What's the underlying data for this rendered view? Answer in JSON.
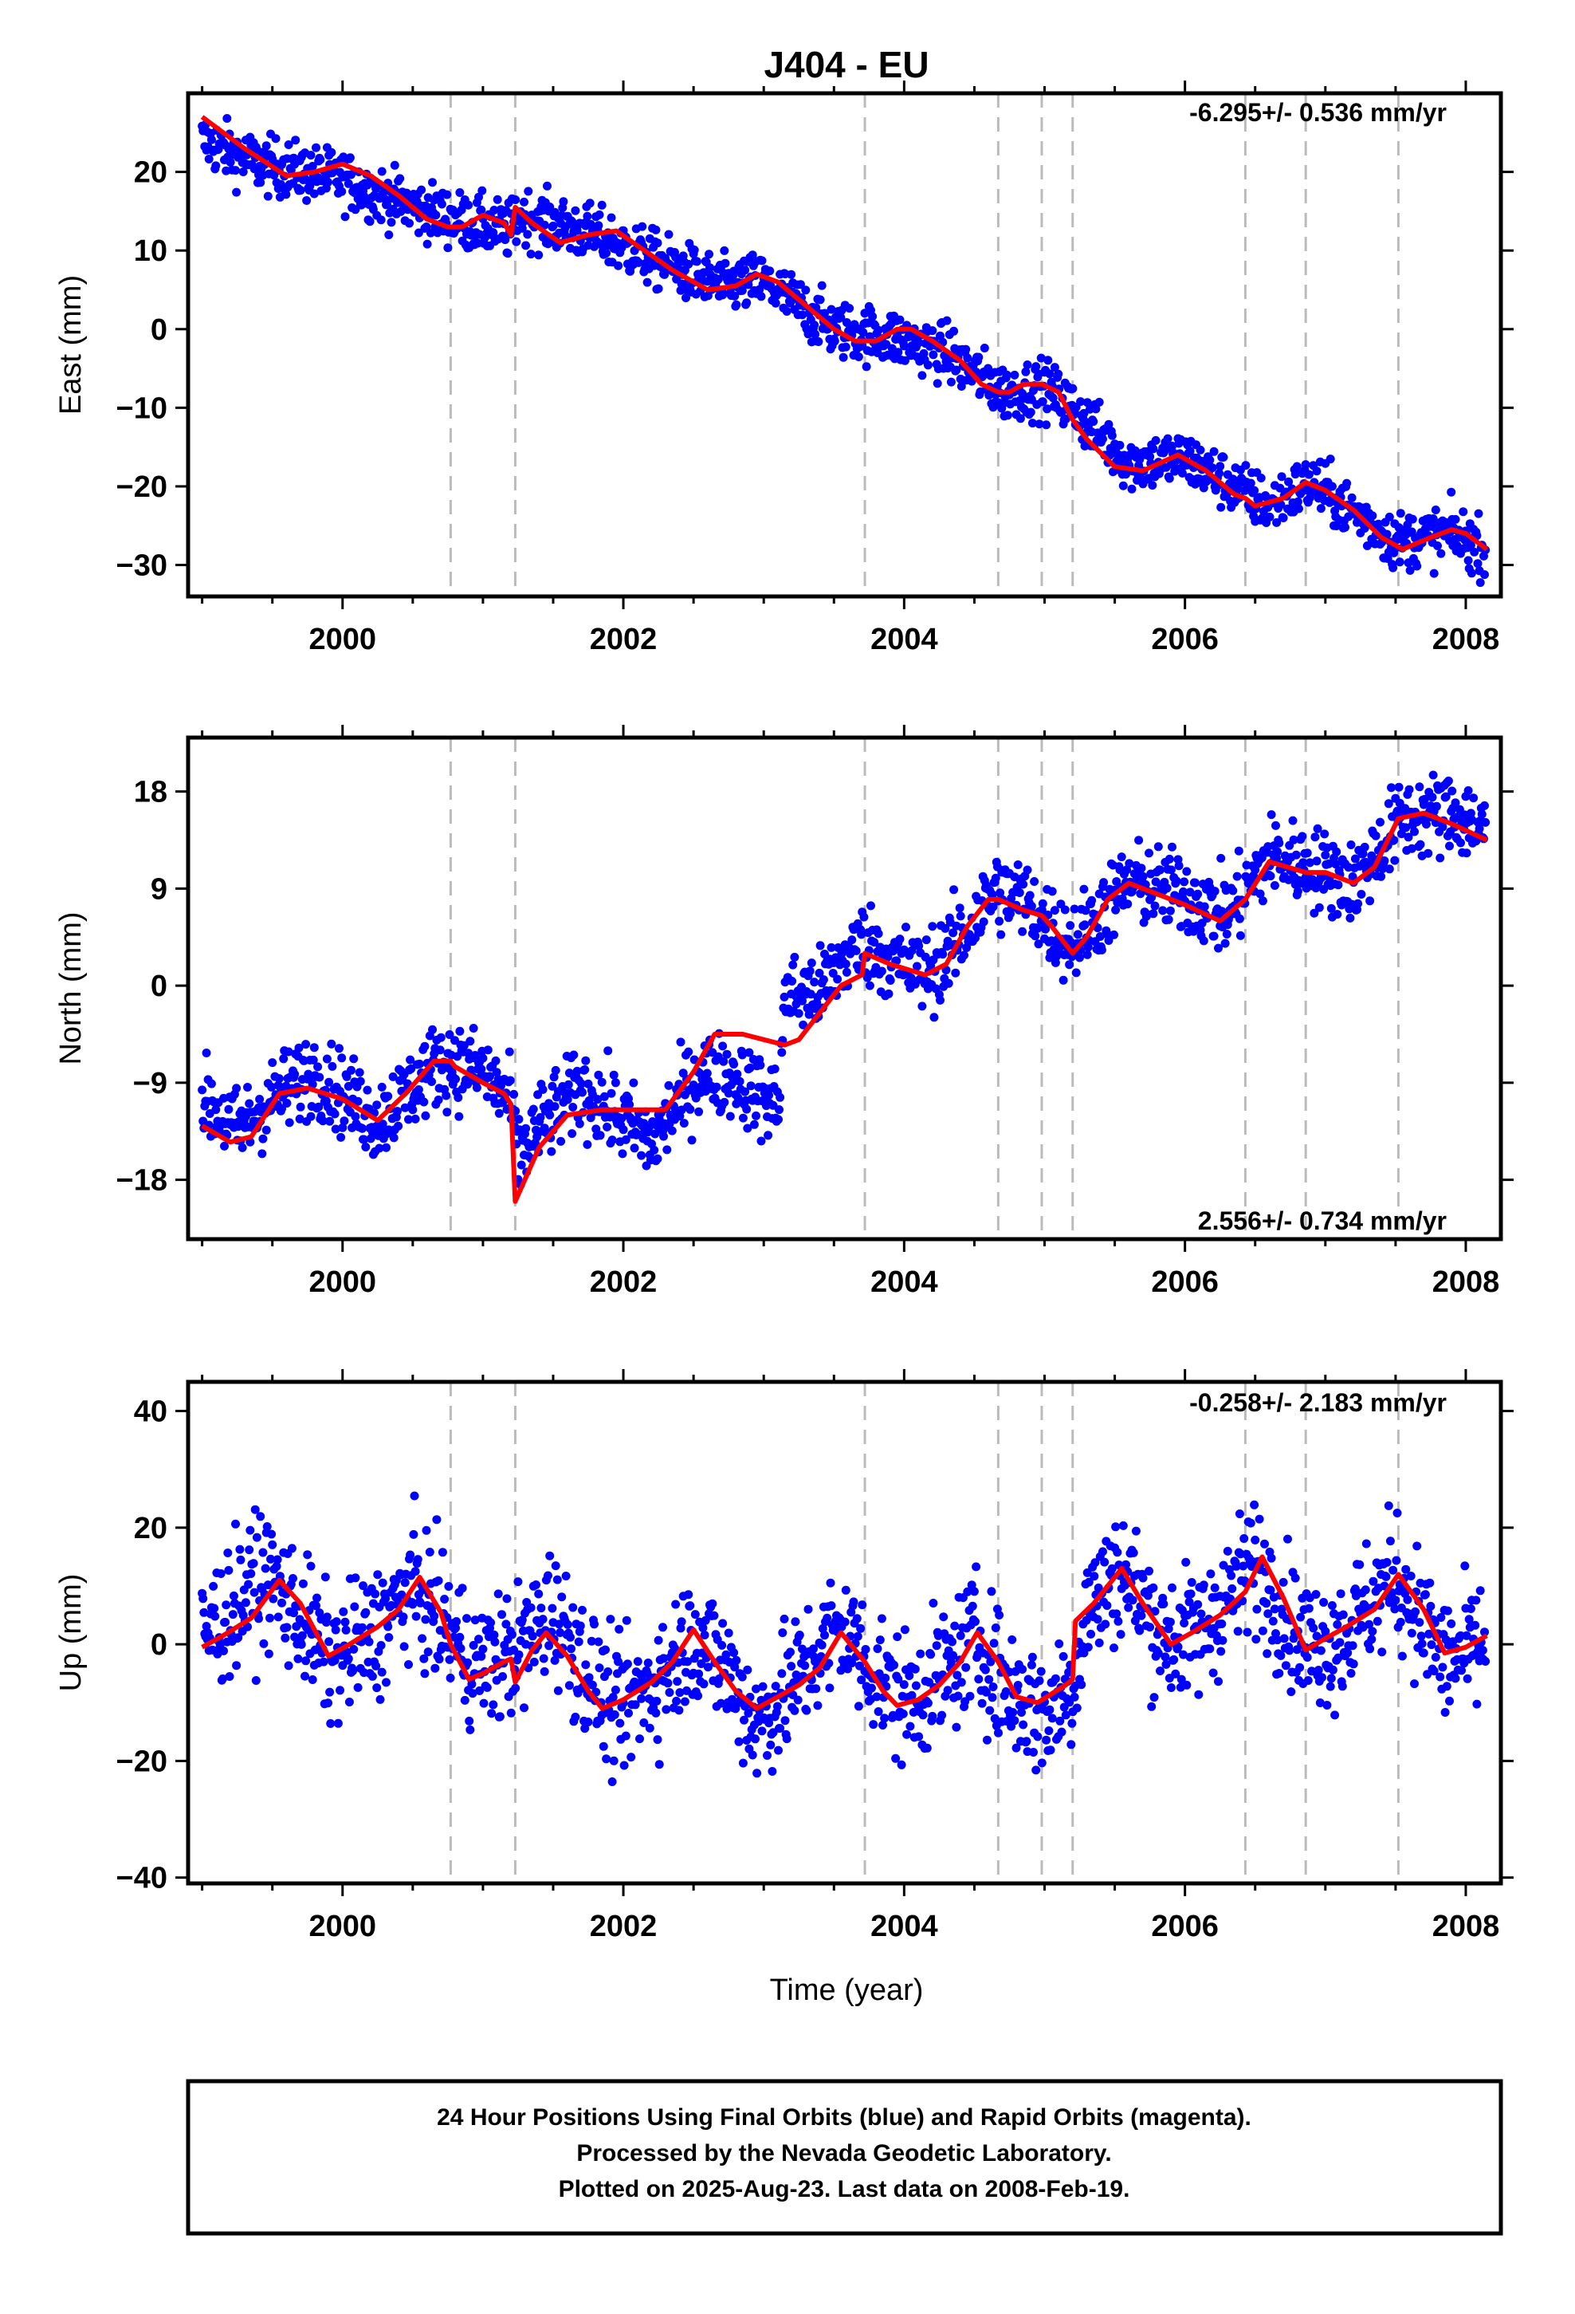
{
  "title": "J404 - EU",
  "xlabel": "Time (year)",
  "footer": {
    "line1": "24 Hour Positions Using Final Orbits (blue) and Rapid Orbits (magenta).",
    "line2": "Processed by the Nevada Geodetic Laboratory.",
    "line3": "Plotted on 2025-Aug-23. Last data on 2008-Feb-19."
  },
  "colors": {
    "points": "#0000ff",
    "model": "#ff0000",
    "events": "#bbbbbb",
    "frame": "#000000"
  },
  "chart_data": [
    {
      "type": "scatter",
      "ylabel": "East (mm)",
      "rate_label": "-6.295+/- 0.536 mm/yr",
      "xlim": [
        1998.9,
        2008.25
      ],
      "ylim": [
        -34,
        30
      ],
      "xticks": [
        2000,
        2002,
        2004,
        2006,
        2008
      ],
      "yticks": [
        -30,
        -20,
        -10,
        0,
        10,
        20
      ],
      "events": [
        2000.77,
        2001.23,
        2003.72,
        2004.67,
        2004.98,
        2005.2,
        2006.43,
        2006.86,
        2007.52
      ],
      "model_line": [
        [
          1999.0,
          27
        ],
        [
          1999.3,
          23
        ],
        [
          1999.6,
          19.5
        ],
        [
          1999.8,
          20
        ],
        [
          2000.0,
          21
        ],
        [
          2000.2,
          19.5
        ],
        [
          2000.4,
          17
        ],
        [
          2000.6,
          14
        ],
        [
          2000.75,
          13
        ],
        [
          2000.85,
          13
        ],
        [
          2001.0,
          14.5
        ],
        [
          2001.15,
          13.5
        ],
        [
          2001.2,
          12
        ],
        [
          2001.23,
          15.5
        ],
        [
          2001.35,
          13.5
        ],
        [
          2001.55,
          11
        ],
        [
          2001.75,
          12
        ],
        [
          2001.95,
          12.5
        ],
        [
          2002.15,
          10
        ],
        [
          2002.35,
          7.5
        ],
        [
          2002.6,
          5
        ],
        [
          2002.8,
          5.5
        ],
        [
          2002.95,
          7
        ],
        [
          2003.1,
          6
        ],
        [
          2003.3,
          3
        ],
        [
          2003.5,
          0
        ],
        [
          2003.65,
          -1.5
        ],
        [
          2003.8,
          -1.5
        ],
        [
          2003.95,
          0
        ],
        [
          2004.05,
          0
        ],
        [
          2004.2,
          -1.5
        ],
        [
          2004.4,
          -4
        ],
        [
          2004.55,
          -7
        ],
        [
          2004.67,
          -8
        ],
        [
          2004.75,
          -8
        ],
        [
          2004.85,
          -7
        ],
        [
          2004.98,
          -7
        ],
        [
          2005.1,
          -8
        ],
        [
          2005.2,
          -11.5
        ],
        [
          2005.3,
          -14
        ],
        [
          2005.5,
          -17.5
        ],
        [
          2005.7,
          -18
        ],
        [
          2005.95,
          -16
        ],
        [
          2006.15,
          -18
        ],
        [
          2006.35,
          -21
        ],
        [
          2006.43,
          -21.5
        ],
        [
          2006.5,
          -22.5
        ],
        [
          2006.7,
          -21.5
        ],
        [
          2006.86,
          -19.5
        ],
        [
          2007.0,
          -20.5
        ],
        [
          2007.2,
          -23
        ],
        [
          2007.4,
          -26.5
        ],
        [
          2007.55,
          -28
        ],
        [
          2007.75,
          -26.5
        ],
        [
          2007.9,
          -25.5
        ],
        [
          2008.0,
          -26
        ],
        [
          2008.15,
          -28
        ]
      ],
      "point_trend": [
        [
          1999.0,
          24
        ],
        [
          1999.4,
          21
        ],
        [
          2000.0,
          19
        ],
        [
          2000.5,
          15.5
        ],
        [
          2000.9,
          13.5
        ],
        [
          2001.2,
          12.5
        ],
        [
          2001.25,
          14.5
        ],
        [
          2001.8,
          12
        ],
        [
          2002.2,
          9
        ],
        [
          2002.7,
          5.5
        ],
        [
          2003.0,
          6
        ],
        [
          2003.5,
          0
        ],
        [
          2003.9,
          -1
        ],
        [
          2004.3,
          -3
        ],
        [
          2004.7,
          -8
        ],
        [
          2005.0,
          -7.5
        ],
        [
          2005.2,
          -10
        ],
        [
          2005.6,
          -17
        ],
        [
          2006.0,
          -16.5
        ],
        [
          2006.4,
          -20.5
        ],
        [
          2006.6,
          -22.5
        ],
        [
          2006.9,
          -19.5
        ],
        [
          2007.5,
          -27
        ],
        [
          2007.9,
          -26
        ],
        [
          2008.15,
          -28
        ]
      ],
      "scatter_sigma": 1.8,
      "data_range": [
        1999.0,
        2008.14
      ]
    },
    {
      "type": "scatter",
      "ylabel": "North (mm)",
      "rate_label": "2.556+/- 0.734 mm/yr",
      "xlim": [
        1998.9,
        2008.25
      ],
      "ylim": [
        -23.5,
        23
      ],
      "xticks": [
        2000,
        2002,
        2004,
        2006,
        2008
      ],
      "yticks": [
        -18,
        -9,
        0,
        9,
        18
      ],
      "events": [
        2000.77,
        2001.23,
        2003.72,
        2004.67,
        2004.98,
        2005.2,
        2006.43,
        2006.86,
        2007.52
      ],
      "model_line": [
        [
          1999.0,
          -13
        ],
        [
          1999.2,
          -14.5
        ],
        [
          1999.35,
          -14
        ],
        [
          1999.55,
          -10
        ],
        [
          1999.75,
          -9.5
        ],
        [
          2000.0,
          -10.5
        ],
        [
          2000.25,
          -12.5
        ],
        [
          2000.45,
          -10
        ],
        [
          2000.65,
          -7
        ],
        [
          2000.77,
          -7
        ],
        [
          2000.8,
          -7.5
        ],
        [
          2001.0,
          -9
        ],
        [
          2001.15,
          -10
        ],
        [
          2001.2,
          -11
        ],
        [
          2001.23,
          -20
        ],
        [
          2001.4,
          -15
        ],
        [
          2001.6,
          -12
        ],
        [
          2001.85,
          -11.5
        ],
        [
          2002.1,
          -11.5
        ],
        [
          2002.3,
          -11.5
        ],
        [
          2002.5,
          -8
        ],
        [
          2002.65,
          -4.5
        ],
        [
          2002.85,
          -4.5
        ],
        [
          2003.0,
          -5
        ],
        [
          2003.15,
          -5.5
        ],
        [
          2003.25,
          -5
        ],
        [
          2003.4,
          -2.5
        ],
        [
          2003.55,
          0
        ],
        [
          2003.7,
          1
        ],
        [
          2003.72,
          3
        ],
        [
          2003.9,
          2
        ],
        [
          2004.15,
          1
        ],
        [
          2004.3,
          2
        ],
        [
          2004.45,
          5.5
        ],
        [
          2004.6,
          8
        ],
        [
          2004.67,
          8
        ],
        [
          2004.85,
          7
        ],
        [
          2004.98,
          6.5
        ],
        [
          2005.05,
          5.5
        ],
        [
          2005.2,
          3
        ],
        [
          2005.3,
          4.5
        ],
        [
          2005.45,
          8
        ],
        [
          2005.6,
          9.5
        ],
        [
          2005.8,
          8.5
        ],
        [
          2006.0,
          7.5
        ],
        [
          2006.25,
          6
        ],
        [
          2006.43,
          8
        ],
        [
          2006.6,
          11.5
        ],
        [
          2006.86,
          10.5
        ],
        [
          2007.0,
          10.5
        ],
        [
          2007.2,
          9.5
        ],
        [
          2007.35,
          11
        ],
        [
          2007.52,
          15.5
        ],
        [
          2007.7,
          16
        ],
        [
          2007.9,
          15
        ],
        [
          2008.15,
          13.5
        ]
      ],
      "point_trend": [
        [
          1999.0,
          -10.5
        ],
        [
          1999.25,
          -13.5
        ],
        [
          1999.5,
          -10.5
        ],
        [
          1999.8,
          -8
        ],
        [
          2000.0,
          -10
        ],
        [
          2000.25,
          -12.5
        ],
        [
          2000.45,
          -10
        ],
        [
          2000.7,
          -7
        ],
        [
          2001.0,
          -8
        ],
        [
          2001.2,
          -11
        ],
        [
          2001.25,
          -16
        ],
        [
          2001.4,
          -13
        ],
        [
          2001.7,
          -9.5
        ],
        [
          2001.95,
          -12
        ],
        [
          2002.2,
          -14.5
        ],
        [
          2002.55,
          -8
        ],
        [
          2002.8,
          -8.5
        ],
        [
          2003.0,
          -10.5
        ],
        [
          2003.1,
          -11
        ],
        [
          2003.15,
          -1
        ],
        [
          2003.4,
          -0.5
        ],
        [
          2003.6,
          3
        ],
        [
          2003.72,
          4
        ],
        [
          2003.9,
          2.5
        ],
        [
          2004.15,
          1
        ],
        [
          2004.45,
          5
        ],
        [
          2004.65,
          9
        ],
        [
          2004.9,
          7.5
        ],
        [
          2005.0,
          6
        ],
        [
          2005.2,
          4
        ],
        [
          2005.6,
          9.5
        ],
        [
          2006.0,
          8.5
        ],
        [
          2006.3,
          6.5
        ],
        [
          2006.6,
          12
        ],
        [
          2006.9,
          11
        ],
        [
          2007.2,
          9.5
        ],
        [
          2007.55,
          15.5
        ],
        [
          2007.9,
          16
        ],
        [
          2008.15,
          14.5
        ]
      ],
      "scatter_sigma": 1.9,
      "data_range": [
        1999.0,
        2008.14
      ]
    },
    {
      "type": "scatter",
      "ylabel": "Up (mm)",
      "rate_label": "-0.258+/- 2.183 mm/yr",
      "xlim": [
        1998.9,
        2008.25
      ],
      "ylim": [
        -41,
        45
      ],
      "xticks": [
        2000,
        2002,
        2004,
        2006,
        2008
      ],
      "yticks": [
        -40,
        -20,
        0,
        20,
        40
      ],
      "events": [
        2000.77,
        2001.23,
        2003.72,
        2004.67,
        2004.98,
        2005.2,
        2006.43,
        2006.86,
        2007.52
      ],
      "model_line": [
        [
          1999.0,
          -0.5
        ],
        [
          1999.15,
          1.5
        ],
        [
          1999.35,
          4.5
        ],
        [
          1999.55,
          11
        ],
        [
          1999.7,
          7
        ],
        [
          1999.9,
          -2
        ],
        [
          2000.05,
          0
        ],
        [
          2000.25,
          3
        ],
        [
          2000.4,
          6
        ],
        [
          2000.55,
          11.5
        ],
        [
          2000.7,
          5.5
        ],
        [
          2000.77,
          0
        ],
        [
          2000.9,
          -6
        ],
        [
          2001.0,
          -5
        ],
        [
          2001.15,
          -3
        ],
        [
          2001.2,
          -2.5
        ],
        [
          2001.23,
          -6.5
        ],
        [
          2001.35,
          -1
        ],
        [
          2001.45,
          2
        ],
        [
          2001.6,
          -2
        ],
        [
          2001.75,
          -8
        ],
        [
          2001.85,
          -11
        ],
        [
          2002.0,
          -9.5
        ],
        [
          2002.2,
          -6.5
        ],
        [
          2002.35,
          -3
        ],
        [
          2002.5,
          2.5
        ],
        [
          2002.65,
          -3
        ],
        [
          2002.8,
          -8
        ],
        [
          2002.95,
          -11
        ],
        [
          2003.1,
          -9
        ],
        [
          2003.25,
          -7
        ],
        [
          2003.4,
          -4
        ],
        [
          2003.55,
          2
        ],
        [
          2003.72,
          -3
        ],
        [
          2003.85,
          -8
        ],
        [
          2003.95,
          -10.5
        ],
        [
          2004.1,
          -9.5
        ],
        [
          2004.25,
          -7
        ],
        [
          2004.4,
          -3
        ],
        [
          2004.52,
          2
        ],
        [
          2004.67,
          -3
        ],
        [
          2004.8,
          -9
        ],
        [
          2004.95,
          -10
        ],
        [
          2005.05,
          -8.5
        ],
        [
          2005.15,
          -7
        ],
        [
          2005.2,
          -6
        ],
        [
          2005.22,
          4
        ],
        [
          2005.35,
          7
        ],
        [
          2005.55,
          13
        ],
        [
          2005.7,
          7
        ],
        [
          2005.9,
          0
        ],
        [
          2006.05,
          2
        ],
        [
          2006.25,
          5
        ],
        [
          2006.43,
          9
        ],
        [
          2006.55,
          15
        ],
        [
          2006.7,
          8
        ],
        [
          2006.86,
          -1
        ],
        [
          2007.0,
          1
        ],
        [
          2007.15,
          3
        ],
        [
          2007.35,
          6
        ],
        [
          2007.52,
          12
        ],
        [
          2007.7,
          6
        ],
        [
          2007.85,
          -1.5
        ],
        [
          2008.0,
          -0.5
        ],
        [
          2008.15,
          1.5
        ]
      ],
      "point_trend": [
        [
          1999.0,
          1
        ],
        [
          1999.2,
          6
        ],
        [
          1999.45,
          12
        ],
        [
          1999.7,
          5
        ],
        [
          1999.9,
          -3
        ],
        [
          2000.2,
          1
        ],
        [
          2000.5,
          10
        ],
        [
          2000.77,
          2
        ],
        [
          2000.95,
          -4
        ],
        [
          2001.25,
          -1
        ],
        [
          2001.5,
          6
        ],
        [
          2001.75,
          -5
        ],
        [
          2001.95,
          -12
        ],
        [
          2002.3,
          -5
        ],
        [
          2002.5,
          2
        ],
        [
          2002.75,
          -5
        ],
        [
          2002.95,
          -14
        ],
        [
          2003.2,
          -7
        ],
        [
          2003.55,
          3
        ],
        [
          2003.8,
          -5
        ],
        [
          2004.0,
          -10
        ],
        [
          2004.3,
          -5
        ],
        [
          2004.5,
          1
        ],
        [
          2004.75,
          -8
        ],
        [
          2005.0,
          -12
        ],
        [
          2005.2,
          -7
        ],
        [
          2005.3,
          6
        ],
        [
          2005.55,
          13
        ],
        [
          2005.85,
          1
        ],
        [
          2006.1,
          2
        ],
        [
          2006.5,
          14
        ],
        [
          2006.85,
          0
        ],
        [
          2007.1,
          1
        ],
        [
          2007.5,
          12
        ],
        [
          2007.85,
          -3
        ],
        [
          2008.15,
          0
        ]
      ],
      "scatter_sigma": 5.5,
      "data_range": [
        1999.0,
        2008.14
      ]
    }
  ]
}
